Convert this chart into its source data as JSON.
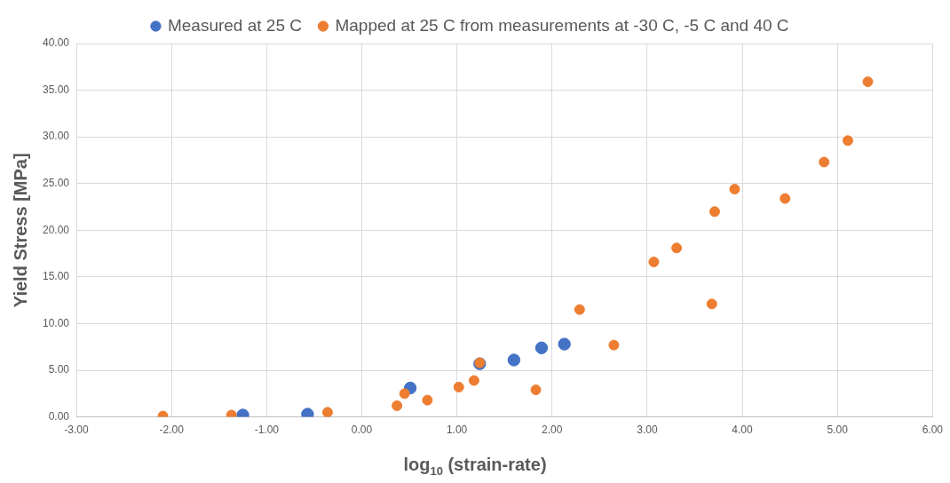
{
  "chart_data": {
    "type": "scatter",
    "xlabel": "log$_{10}$ (strain-rate)",
    "ylabel": "Yield Stress [MPa]",
    "series": [
      {
        "name": "Measured at 25 C",
        "color": "#4472c4",
        "x": [
          -1.25,
          -0.57,
          0.51,
          1.24,
          1.6,
          1.89,
          2.13
        ],
        "values": [
          0.2,
          0.3,
          3.1,
          5.7,
          6.1,
          7.4,
          7.8
        ]
      },
      {
        "name": "Mapped at 25 C from measurements at -30 C, -5 C and 40 C",
        "color": "#ed7d31",
        "x": [
          -2.09,
          -1.37,
          -0.36,
          0.37,
          0.45,
          0.69,
          1.02,
          1.18,
          1.24,
          1.83,
          2.29,
          2.65,
          3.07,
          3.31,
          3.68,
          3.71,
          3.92,
          4.45,
          4.86,
          5.11,
          5.32
        ],
        "values": [
          0.1,
          0.2,
          0.5,
          1.2,
          2.5,
          1.8,
          3.2,
          3.9,
          5.8,
          2.9,
          11.5,
          7.7,
          16.6,
          18.1,
          12.1,
          22.0,
          24.4,
          23.4,
          27.3,
          29.6,
          35.9
        ]
      }
    ],
    "xlim": [
      -3,
      6
    ],
    "xticks": [
      {
        "value": -3,
        "label": "-3.00"
      },
      {
        "value": -2,
        "label": "-2.00"
      },
      {
        "value": -1,
        "label": "-1.00"
      },
      {
        "value": 0,
        "label": "0.00"
      },
      {
        "value": 1,
        "label": "1.00"
      },
      {
        "value": 2,
        "label": "2.00"
      },
      {
        "value": 3,
        "label": "3.00"
      },
      {
        "value": 4,
        "label": "4.00"
      },
      {
        "value": 5,
        "label": "5.00"
      },
      {
        "value": 6,
        "label": "6.00"
      }
    ],
    "ylim": [
      0,
      40
    ],
    "yticks": [
      {
        "value": 0,
        "label": "0.00"
      },
      {
        "value": 5,
        "label": "5.00"
      },
      {
        "value": 10,
        "label": "10.00"
      },
      {
        "value": 15,
        "label": "15.00"
      },
      {
        "value": 20,
        "label": "20.00"
      },
      {
        "value": 25,
        "label": "25.00"
      },
      {
        "value": 30,
        "label": "30.00"
      },
      {
        "value": 35,
        "label": "35.00"
      },
      {
        "value": 40,
        "label": "40.00"
      }
    ],
    "grid": true,
    "legend": "top",
    "marker": "circle"
  }
}
